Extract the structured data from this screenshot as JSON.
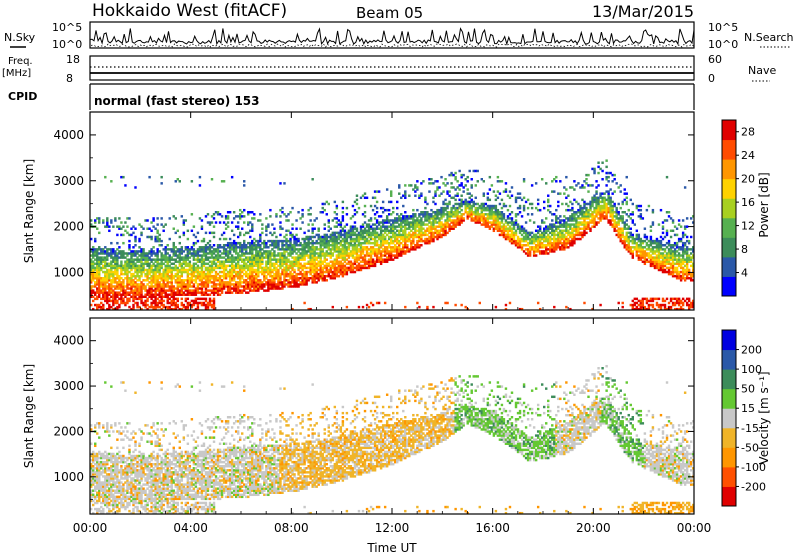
{
  "header": {
    "title": "Hokkaido West (fitACF)",
    "beam": "Beam 05",
    "date": "13/Mar/2015"
  },
  "top_panels": {
    "nsky_label": "N.Sky",
    "nsky_ticks": [
      "10^5",
      "10^0"
    ],
    "nsearch_label": "N.Search",
    "nsearch_ticks": [
      "10^5",
      "10^0"
    ],
    "freq_label": "Freq.",
    "freq_unit": "[MHz]",
    "freq_ticks": [
      "18",
      "8"
    ],
    "nave_label": "Nave",
    "nave_ticks": [
      "60",
      "0"
    ],
    "cpid_label": "CPID",
    "cpid_value": "normal (fast stereo) 153"
  },
  "colors": {
    "power": [
      "#0000ff",
      "#2a58a8",
      "#3c8c5a",
      "#56b050",
      "#a8d020",
      "#ffd200",
      "#ff9600",
      "#ff4b00",
      "#e00000"
    ],
    "velocity": [
      "#e00000",
      "#ff5000",
      "#ff9600",
      "#f0b428",
      "#c8c8c8",
      "#64c832",
      "#3c8c5a",
      "#2a58a8",
      "#0000e0"
    ]
  },
  "chart_data": [
    {
      "type": "heatmap",
      "title": "Power",
      "xlabel": "Time UT",
      "ylabel": "Slant Range [km]",
      "xlim": [
        "00:00",
        "24:00"
      ],
      "ylim": [
        180,
        4500
      ],
      "xticks": [
        "00:00",
        "04:00",
        "08:00",
        "12:00",
        "16:00",
        "20:00",
        "00:00"
      ],
      "yticks": [
        1000,
        2000,
        3000,
        4000
      ],
      "colorbar": {
        "label": "Power [dB]",
        "ticks": [
          4,
          8,
          12,
          16,
          20,
          24,
          28
        ],
        "range": [
          0,
          30
        ]
      },
      "scatter_outline": [
        {
          "time": "00:30",
          "lower_km": 450,
          "upper_km": 1500
        },
        {
          "time": "02:00",
          "lower_km": 430,
          "upper_km": 1450
        },
        {
          "time": "04:00",
          "lower_km": 460,
          "upper_km": 1550
        },
        {
          "time": "06:00",
          "lower_km": 520,
          "upper_km": 1650
        },
        {
          "time": "08:00",
          "lower_km": 640,
          "upper_km": 1700
        },
        {
          "time": "10:00",
          "lower_km": 880,
          "upper_km": 1900
        },
        {
          "time": "12:00",
          "lower_km": 1250,
          "upper_km": 2150
        },
        {
          "time": "14:00",
          "lower_km": 1750,
          "upper_km": 2400
        },
        {
          "time": "15:00",
          "lower_km": 2150,
          "upper_km": 2550
        },
        {
          "time": "16:00",
          "lower_km": 1900,
          "upper_km": 2450
        },
        {
          "time": "17:30",
          "lower_km": 1300,
          "upper_km": 1850
        },
        {
          "time": "19:00",
          "lower_km": 1500,
          "upper_km": 2200
        },
        {
          "time": "20:30",
          "lower_km": 2150,
          "upper_km": 2800
        },
        {
          "time": "21:30",
          "lower_km": 1300,
          "upper_km": 1850
        },
        {
          "time": "23:30",
          "lower_km": 800,
          "upper_km": 1550
        }
      ]
    },
    {
      "type": "heatmap",
      "title": "Velocity",
      "xlabel": "Time UT",
      "ylabel": "Slant Range [km]",
      "xlim": [
        "00:00",
        "24:00"
      ],
      "ylim": [
        180,
        4500
      ],
      "xticks": [
        "00:00",
        "04:00",
        "08:00",
        "12:00",
        "16:00",
        "20:00",
        "00:00"
      ],
      "yticks": [
        1000,
        2000,
        3000,
        4000
      ],
      "colorbar": {
        "label": "Velocity [m s⁻¹]",
        "ticks": [
          200,
          100,
          50,
          15,
          -15,
          -50,
          -100,
          -200
        ]
      }
    }
  ]
}
